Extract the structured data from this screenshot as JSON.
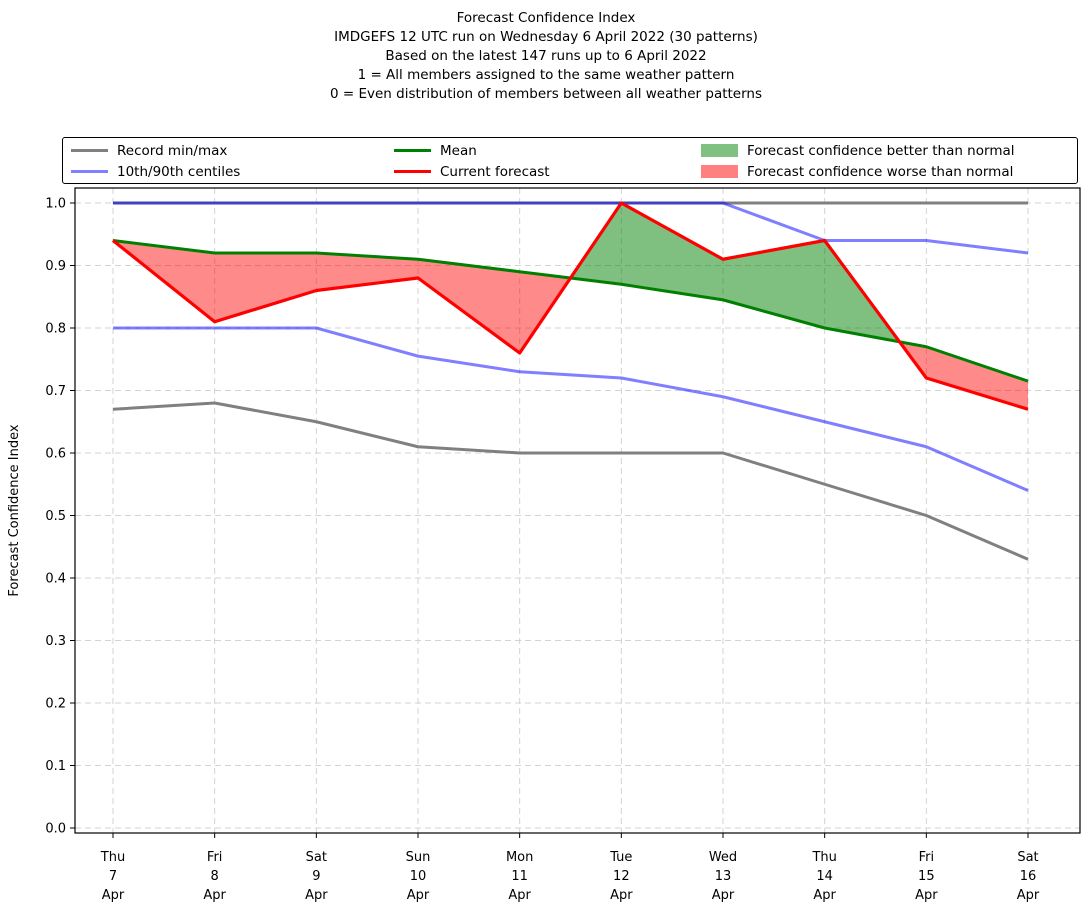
{
  "chart_data": {
    "type": "line",
    "title": "Forecast Confidence Index",
    "subtitles": [
      "IMDGEFS 12 UTC run on Wednesday 6 April 2022 (30 patterns)",
      "Based on the latest 147 runs up to 6 April 2022",
      "1 = All members assigned to the same weather pattern",
      "0 = Even distribution of members between all weather patterns"
    ],
    "ylabel": "Forecast Confidence Index",
    "ylim": [
      0.0,
      1.0
    ],
    "ytick_step": 0.1,
    "grid": true,
    "grid_style": "dashed",
    "categories": [
      {
        "weekday": "Thu",
        "day": "7",
        "month": "Apr"
      },
      {
        "weekday": "Fri",
        "day": "8",
        "month": "Apr"
      },
      {
        "weekday": "Sat",
        "day": "9",
        "month": "Apr"
      },
      {
        "weekday": "Sun",
        "day": "10",
        "month": "Apr"
      },
      {
        "weekday": "Mon",
        "day": "11",
        "month": "Apr"
      },
      {
        "weekday": "Tue",
        "day": "12",
        "month": "Apr"
      },
      {
        "weekday": "Wed",
        "day": "13",
        "month": "Apr"
      },
      {
        "weekday": "Thu",
        "day": "14",
        "month": "Apr"
      },
      {
        "weekday": "Fri",
        "day": "15",
        "month": "Apr"
      },
      {
        "weekday": "Sat",
        "day": "16",
        "month": "Apr"
      }
    ],
    "series": [
      {
        "name": "Record max",
        "color": "#808080",
        "width": 3,
        "values": [
          1.0,
          1.0,
          1.0,
          1.0,
          1.0,
          1.0,
          1.0,
          1.0,
          1.0,
          1.0
        ]
      },
      {
        "name": "Record min",
        "color": "#808080",
        "width": 3,
        "values": [
          0.67,
          0.68,
          0.65,
          0.61,
          0.6,
          0.6,
          0.6,
          0.55,
          0.5,
          0.43
        ]
      },
      {
        "name": "90th centile",
        "color": "rgba(0,0,255,0.5)",
        "width": 3,
        "values": [
          1.0,
          1.0,
          1.0,
          1.0,
          1.0,
          1.0,
          1.0,
          0.94,
          0.94,
          0.92
        ]
      },
      {
        "name": "10th centile",
        "color": "rgba(0,0,255,0.5)",
        "width": 3,
        "values": [
          0.8,
          0.8,
          0.8,
          0.755,
          0.73,
          0.72,
          0.69,
          0.65,
          0.61,
          0.54
        ]
      },
      {
        "name": "Mean",
        "color": "#008000",
        "width": 3,
        "values": [
          0.94,
          0.92,
          0.92,
          0.91,
          0.89,
          0.87,
          0.845,
          0.8,
          0.77,
          0.715
        ]
      },
      {
        "name": "Current forecast",
        "color": "#ff0000",
        "width": 3.2,
        "values": [
          0.94,
          0.81,
          0.86,
          0.88,
          0.76,
          1.0,
          0.91,
          0.94,
          0.72,
          0.67
        ]
      }
    ],
    "bands": [
      {
        "name": "Forecast confidence better than normal",
        "upper": "Current forecast",
        "lower": "Mean",
        "where": "above",
        "color": "rgba(0,128,0,0.5)"
      },
      {
        "name": "Forecast confidence worse than normal",
        "upper": "Current forecast",
        "lower": "Mean",
        "where": "below",
        "color": "rgba(255,0,0,0.46)"
      }
    ],
    "legend": {
      "position": "top",
      "items": [
        {
          "label": "Record min/max",
          "swatch": "line",
          "color": "#808080"
        },
        {
          "label": "10th/90th centiles",
          "swatch": "line",
          "color": "#8080ff"
        },
        {
          "label": "Mean",
          "swatch": "line",
          "color": "#008000"
        },
        {
          "label": "Current forecast",
          "swatch": "line",
          "color": "#ff0000"
        },
        {
          "label": "Forecast confidence better than normal",
          "swatch": "patch",
          "color": "#80c080"
        },
        {
          "label": "Forecast confidence worse than normal",
          "swatch": "patch",
          "color": "#ff8080"
        }
      ]
    }
  }
}
